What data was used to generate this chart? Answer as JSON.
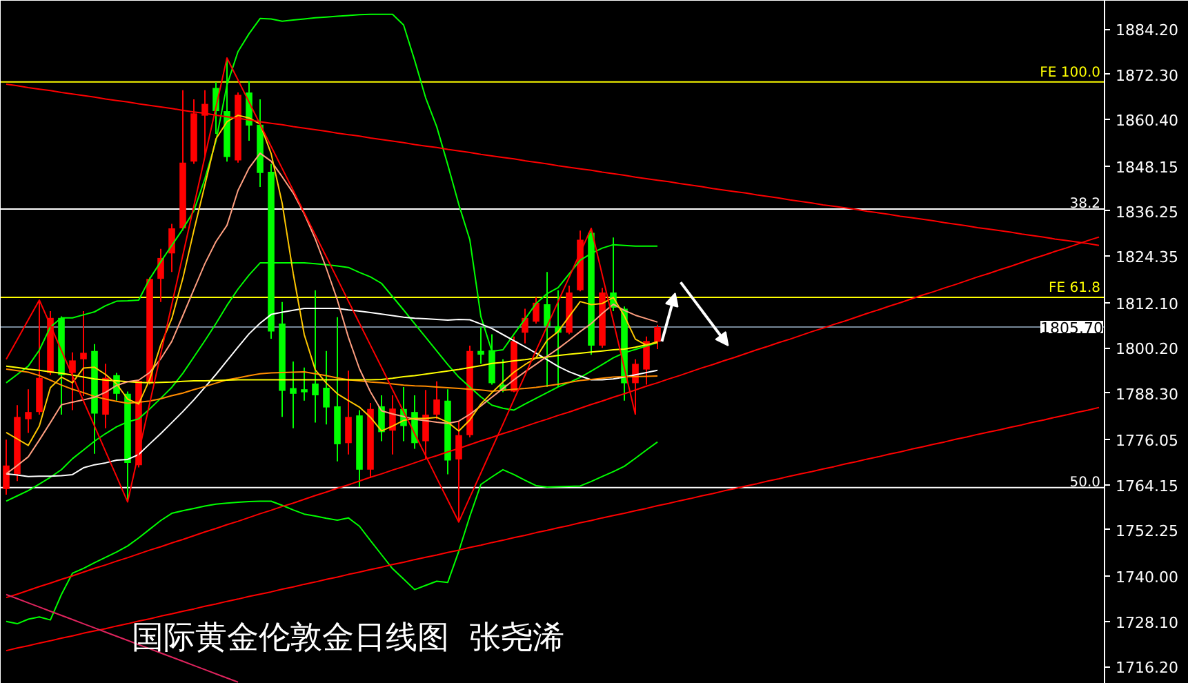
{
  "chart_data": {
    "type": "candlestick",
    "title": "国际黄金伦敦金日线图  张尧浠",
    "categories": [
      null,
      null,
      null,
      null,
      null,
      null,
      null,
      null,
      null,
      null,
      null,
      null,
      null,
      null,
      null,
      null,
      null,
      null,
      null,
      null,
      null,
      null,
      null,
      null,
      null,
      null,
      null,
      null,
      null,
      null,
      null,
      null,
      null,
      null,
      null,
      null,
      null,
      null,
      null,
      null,
      null,
      null,
      null,
      null,
      null,
      null,
      null,
      null,
      null,
      null,
      null,
      null,
      null,
      null,
      null,
      null,
      null,
      null,
      null,
      null,
      null,
      null,
      null,
      null,
      null,
      null,
      null,
      null,
      null,
      null,
      null,
      null,
      null,
      null,
      null,
      null,
      null,
      null,
      null,
      null,
      null,
      null,
      null,
      null,
      null,
      null,
      null,
      null,
      null,
      null,
      null,
      null,
      null,
      null,
      null,
      null,
      null,
      null,
      null,
      null
    ],
    "ohlc": [
      [
        1763.0,
        1776.0,
        1761.5,
        1769.2
      ],
      [
        1766.9,
        1785.1,
        1765.1,
        1782.0
      ],
      [
        1781.4,
        1789.3,
        1777.8,
        1783.3
      ],
      [
        1783.3,
        1812.8,
        1782.6,
        1792.3
      ],
      [
        1793.6,
        1809.9,
        1793.0,
        1808.1
      ],
      [
        1808.1,
        1808.5,
        1782.6,
        1793.0
      ],
      [
        1793.6,
        1799.0,
        1783.8,
        1796.9
      ],
      [
        1797.2,
        1809.9,
        1787.5,
        1798.9
      ],
      [
        1799.4,
        1801.2,
        1772.3,
        1782.9
      ],
      [
        1782.6,
        1796.0,
        1779.0,
        1792.3
      ],
      [
        1793.0,
        1793.6,
        1786.3,
        1788.1
      ],
      [
        1788.1,
        1788.7,
        1759.6,
        1769.9
      ],
      [
        1769.3,
        1791.7,
        1768.7,
        1791.5
      ],
      [
        1791.1,
        1818.8,
        1790.5,
        1818.4
      ],
      [
        1818.4,
        1826.3,
        1812.3,
        1823.9
      ],
      [
        1825.1,
        1832.9,
        1820.2,
        1831.7
      ],
      [
        1831.7,
        1868.1,
        1831.1,
        1849.0
      ],
      [
        1849.3,
        1865.7,
        1848.7,
        1862.0
      ],
      [
        1861.4,
        1868.1,
        1850.5,
        1864.5
      ],
      [
        1868.7,
        1870.2,
        1856.6,
        1862.6
      ],
      [
        1862.6,
        1876.6,
        1849.3,
        1850.5
      ],
      [
        1849.6,
        1867.5,
        1849.0,
        1866.9
      ],
      [
        1867.5,
        1870.5,
        1854.8,
        1858.8
      ],
      [
        1859.0,
        1865.7,
        1842.6,
        1846.3
      ],
      [
        1846.6,
        1848.7,
        1802.6,
        1804.5
      ],
      [
        1806.6,
        1812.3,
        1782.0,
        1788.9
      ],
      [
        1789.6,
        1796.6,
        1779.0,
        1788.1
      ],
      [
        1789.3,
        1795.0,
        1786.3,
        1788.5
      ],
      [
        1790.8,
        1815.4,
        1780.5,
        1787.7
      ],
      [
        1789.7,
        1799.4,
        1780.0,
        1784.5
      ],
      [
        1784.8,
        1808.3,
        1770.3,
        1774.8
      ],
      [
        1775.1,
        1794.2,
        1772.1,
        1782.0
      ],
      [
        1782.4,
        1783.8,
        1763.5,
        1768.1
      ],
      [
        1768.1,
        1785.7,
        1765.9,
        1784.1
      ],
      [
        1784.8,
        1787.7,
        1775.6,
        1778.0
      ],
      [
        1778.4,
        1787.7,
        1772.1,
        1784.2
      ],
      [
        1784.1,
        1789.9,
        1775.6,
        1779.6
      ],
      [
        1783.3,
        1787.7,
        1773.6,
        1775.1
      ],
      [
        1775.6,
        1789.1,
        1770.8,
        1782.6
      ],
      [
        1782.6,
        1791.4,
        1781.4,
        1786.6
      ],
      [
        1786.3,
        1789.3,
        1766.9,
        1770.5
      ],
      [
        1770.8,
        1780.8,
        1754.3,
        1777.2
      ],
      [
        1777.2,
        1800.8,
        1776.6,
        1799.4
      ],
      [
        1799.4,
        1805.7,
        1796.0,
        1798.4
      ],
      [
        1799.6,
        1803.8,
        1790.5,
        1790.9
      ],
      [
        1790.5,
        1797.2,
        1788.5,
        1788.9
      ],
      [
        1788.7,
        1803.2,
        1788.5,
        1802.0
      ],
      [
        1804.2,
        1810.5,
        1801.4,
        1808.1
      ],
      [
        1807.1,
        1813.5,
        1806.6,
        1812.1
      ],
      [
        1811.7,
        1820.2,
        1789.9,
        1805.9
      ],
      [
        1805.9,
        1815.4,
        1789.9,
        1804.2
      ],
      [
        1804.2,
        1816.6,
        1803.8,
        1814.8
      ],
      [
        1815.4,
        1831.1,
        1815.1,
        1828.7
      ],
      [
        1830.5,
        1831.7,
        1798.4,
        1800.8
      ],
      [
        1800.8,
        1816.0,
        1800.2,
        1814.8
      ],
      [
        1814.8,
        1829.3,
        1809.9,
        1810.8
      ],
      [
        1810.5,
        1811.1,
        1786.3,
        1790.9
      ],
      [
        1790.9,
        1797.2,
        1782.6,
        1796.0
      ],
      [
        1794.5,
        1803.2,
        1790.5,
        1802.0
      ],
      [
        1801.8,
        1806.3,
        1799.9,
        1805.7
      ],
      null,
      null,
      null,
      null,
      null,
      null,
      null,
      null,
      null,
      null,
      null,
      null,
      null,
      null,
      null,
      null,
      null,
      null,
      null,
      null,
      null,
      null,
      null,
      null,
      null,
      null,
      null,
      null,
      null,
      null,
      null,
      null,
      null,
      null,
      null,
      null,
      null,
      null,
      null,
      null
    ],
    "colors": [
      "#ff0000",
      "#ff0000",
      "#ff0000",
      "#ff0000",
      "#ff0000",
      "#00ff00",
      "#ff0000",
      "#ff0000",
      "#00ff00",
      "#ff0000",
      "#00ff00",
      "#00ff00",
      "#ff0000",
      "#ff0000",
      "#ff0000",
      "#ff0000",
      "#ff0000",
      "#ff0000",
      "#ff0000",
      "#00ff00",
      "#00ff00",
      "#ff0000",
      "#00ff00",
      "#00ff00",
      "#00ff00",
      "#00ff00",
      "#00ff00",
      "#00ff00",
      "#00ff00",
      "#00ff00",
      "#00ff00",
      "#ff0000",
      "#00ff00",
      "#ff0000",
      "#00ff00",
      "#ff0000",
      "#00ff00",
      "#00ff00",
      "#ff0000",
      "#ff0000",
      "#00ff00",
      "#ff0000",
      "#ff0000",
      "#00ff00",
      "#00ff00",
      "#00ff00",
      "#ff0000",
      "#ff0000",
      "#ff0000",
      "#00ff00",
      "#00ff00",
      "#ff0000",
      "#ff0000",
      "#00ff00",
      "#ff0000",
      "#00ff00",
      "#00ff00",
      "#ff0000",
      "#ff0000",
      "#ff0000",
      null,
      null,
      null,
      null,
      null,
      null,
      null,
      null,
      null,
      null,
      null,
      null,
      null,
      null,
      null,
      null,
      null,
      null,
      null,
      null,
      null,
      null,
      null,
      null,
      null,
      null,
      null,
      null,
      null,
      null,
      null,
      null,
      null,
      null,
      null,
      null,
      null,
      null,
      null,
      null
    ],
    "series": [
      {
        "type": "line",
        "color": "#00ff00",
        "values": [
          1791.0,
          1793.2,
          1795.4,
          1799.6,
          1805.7,
          1808.1,
          1808.1,
          1808.9,
          1809.7,
          1811.3,
          1812.5,
          1812.6,
          1812.8,
          1818.4,
          1822.9,
          1827.2,
          1831.5,
          1836.3,
          1844.8,
          1854.7,
          1869.5,
          1878.3,
          1883.0,
          1887.0,
          1886.9,
          1886.3,
          1886.6,
          1886.9,
          1887.2,
          1887.4,
          1887.6,
          1887.8,
          1888.0,
          1888.1,
          1888.1,
          1888.1,
          1885.3,
          1876.0,
          1866.1,
          1858.5,
          1848.5,
          1838.0,
          1828.7,
          1808.5,
          1799.3,
          1799.7,
          1803.8,
          1807.8,
          1811.9,
          1814.5,
          1816.1,
          1819.7,
          1823.3,
          1825.1,
          1826.5,
          1827.4,
          1827.2,
          1827.0,
          1827.0,
          1827.0,
          null,
          null,
          null,
          null,
          null,
          null,
          null,
          null,
          null,
          null,
          null,
          null,
          null,
          null,
          null,
          null,
          null,
          null,
          null,
          null,
          null,
          null,
          null,
          null,
          null,
          null,
          null,
          null,
          null,
          null,
          null,
          null,
          null,
          null,
          null,
          null,
          null,
          null,
          null,
          null
        ]
      },
      {
        "type": "line",
        "color": "#00ff00",
        "values": [
          1759.8,
          1761.2,
          1762.6,
          1764.3,
          1766.1,
          1768.1,
          1771.0,
          1773.3,
          1775.6,
          1777.6,
          1779.4,
          1780.7,
          1781.5,
          1784.1,
          1786.9,
          1789.8,
          1793.5,
          1797.8,
          1802.1,
          1806.6,
          1811.4,
          1815.7,
          1819.4,
          1822.6,
          1822.6,
          1822.6,
          1822.6,
          1822.6,
          1822.4,
          1822.1,
          1821.8,
          1821.4,
          1820.1,
          1818.9,
          1817.2,
          1813.7,
          1810.2,
          1806.6,
          1803.0,
          1799.4,
          1795.8,
          1792.5,
          1789.9,
          1787.3,
          1785.1,
          1784.3,
          1783.8,
          1785.4,
          1786.9,
          1788.4,
          1789.9,
          1791.1,
          1792.4,
          1794.1,
          1795.8,
          1797.6,
          1798.9,
          1799.8,
          1800.7,
          1801.6,
          null,
          null,
          null,
          null,
          null,
          null,
          null,
          null,
          null,
          null,
          null,
          null,
          null,
          null,
          null,
          null,
          null,
          null,
          null,
          null,
          null,
          null,
          null,
          null,
          null,
          null,
          null,
          null,
          null,
          null,
          null,
          null,
          null,
          null,
          null,
          null,
          null,
          null,
          null,
          null
        ]
      },
      {
        "type": "line",
        "color": "#00ff00",
        "values": [
          1728.1,
          1727.5,
          1728.7,
          1729.3,
          1728.5,
          1735.2,
          1740.8,
          1742.1,
          1743.6,
          1745.0,
          1746.4,
          1748.0,
          1750.1,
          1752.4,
          1754.7,
          1756.6,
          1757.3,
          1757.9,
          1758.5,
          1759.0,
          1759.3,
          1759.5,
          1759.7,
          1759.8,
          1759.8,
          1758.7,
          1757.5,
          1756.4,
          1755.9,
          1755.3,
          1754.8,
          1755.4,
          1753.2,
          1749.4,
          1745.7,
          1742.0,
          1739.3,
          1736.5,
          1737.6,
          1738.7,
          1738.4,
          1746.6,
          1755.8,
          1764.2,
          1766.2,
          1768.1,
          1766.8,
          1765.3,
          1763.9,
          1763.5,
          1763.6,
          1763.7,
          1763.8,
          1765.0,
          1766.3,
          1767.6,
          1769.0,
          1771.1,
          1773.3,
          1775.4,
          null,
          null,
          null,
          null,
          null,
          null,
          null,
          null,
          null,
          null,
          null,
          null,
          null,
          null,
          null,
          null,
          null,
          null,
          null,
          null,
          null,
          null,
          null,
          null,
          null,
          null,
          null,
          null,
          null,
          null,
          null,
          null,
          null,
          null,
          null,
          null,
          null,
          null,
          null,
          null
        ]
      },
      {
        "type": "line",
        "color": "#ffffff",
        "values": [
          1767.0,
          1766.7,
          1766.3,
          1766.4,
          1766.4,
          1766.5,
          1766.8,
          1768.6,
          1769.4,
          1769.9,
          1770.6,
          1770.8,
          1772.1,
          1774.9,
          1777.6,
          1780.5,
          1783.4,
          1786.5,
          1789.8,
          1793.2,
          1796.8,
          1800.4,
          1803.9,
          1806.7,
          1809.0,
          1809.6,
          1810.1,
          1810.6,
          1810.6,
          1810.6,
          1810.6,
          1810.2,
          1809.9,
          1809.5,
          1809.1,
          1808.7,
          1808.3,
          1808.0,
          1807.9,
          1807.7,
          1807.5,
          1807.7,
          1807.6,
          1806.5,
          1805.3,
          1803.7,
          1802.1,
          1800.5,
          1798.8,
          1797.1,
          1795.3,
          1793.9,
          1792.8,
          1791.8,
          1791.8,
          1792.0,
          1792.5,
          1793.1,
          1793.7,
          1794.3,
          null,
          null,
          null,
          null,
          null,
          null,
          null,
          null,
          null,
          null,
          null,
          null,
          null,
          null,
          null,
          null,
          null,
          null,
          null,
          null,
          null,
          null,
          null,
          null,
          null,
          null,
          null,
          null,
          null,
          null,
          null,
          null,
          null,
          null,
          null,
          null,
          null,
          null,
          null,
          null
        ]
      },
      {
        "type": "line",
        "color": "#ff8c00",
        "values": [
          1794.6,
          1794.2,
          1793.8,
          1792.9,
          1791.7,
          1790.4,
          1789.3,
          1788.4,
          1787.4,
          1786.7,
          1786.1,
          1785.6,
          1785.9,
          1786.2,
          1786.8,
          1787.6,
          1788.3,
          1789.2,
          1790.0,
          1790.9,
          1791.8,
          1792.3,
          1792.9,
          1793.4,
          1793.6,
          1793.7,
          1793.8,
          1793.9,
          1793.4,
          1792.9,
          1792.3,
          1791.8,
          1791.5,
          1791.2,
          1791.0,
          1790.7,
          1790.4,
          1790.2,
          1790.1,
          1789.9,
          1789.7,
          1789.5,
          1789.3,
          1789.1,
          1788.8,
          1789.0,
          1789.3,
          1789.5,
          1789.8,
          1790.2,
          1790.6,
          1791.1,
          1791.6,
          1791.9,
          1792.2,
          1792.5,
          1792.6,
          1792.6,
          1792.7,
          1792.8,
          null,
          null,
          null,
          null,
          null,
          null,
          null,
          null,
          null,
          null,
          null,
          null,
          null,
          null,
          null,
          null,
          null,
          null,
          null,
          null,
          null,
          null,
          null,
          null,
          null,
          null,
          null,
          null,
          null,
          null,
          null,
          null,
          null,
          null,
          null,
          null,
          null,
          null,
          null,
          null
        ]
      },
      {
        "type": "line",
        "color": "#ffff00",
        "values": [
          1795.4,
          1795.0,
          1794.6,
          1794.3,
          1793.9,
          1793.5,
          1793.0,
          1792.5,
          1792.0,
          1791.7,
          1791.5,
          1791.3,
          1791.1,
          1791.0,
          1791.1,
          1791.2,
          1791.4,
          1791.5,
          1791.5,
          1791.6,
          1791.7,
          1791.8,
          1791.8,
          1791.8,
          1791.8,
          1791.8,
          1791.8,
          1791.8,
          1791.8,
          1791.8,
          1791.8,
          1791.8,
          1791.8,
          1791.8,
          1791.9,
          1792.2,
          1792.6,
          1792.9,
          1793.3,
          1793.7,
          1794.1,
          1794.5,
          1795.0,
          1795.5,
          1796.1,
          1796.4,
          1796.8,
          1797.1,
          1797.5,
          1797.8,
          1798.2,
          1798.5,
          1798.8,
          1799.1,
          1799.4,
          1799.7,
          1799.9,
          1800.4,
          1801.0,
          1801.6,
          null,
          null,
          null,
          null,
          null,
          null,
          null,
          null,
          null,
          null,
          null,
          null,
          null,
          null,
          null,
          null,
          null,
          null,
          null,
          null,
          null,
          null,
          null,
          null,
          null,
          null,
          null,
          null,
          null,
          null,
          null,
          null,
          null,
          null,
          null,
          null,
          null,
          null,
          null,
          null
        ]
      },
      {
        "type": "line",
        "color": "#ff9f80",
        "values": [
          1767.0,
          1769.2,
          1771.5,
          1775.9,
          1780.5,
          1785.2,
          1785.9,
          1786.5,
          1787.2,
          1788.5,
          1790.3,
          1791.3,
          1791.7,
          1793.7,
          1797.3,
          1801.9,
          1808.7,
          1815.6,
          1822.4,
          1828.2,
          1832.5,
          1841.7,
          1847.6,
          1851.5,
          1849.4,
          1845.3,
          1841.0,
          1835.5,
          1828.9,
          1821.2,
          1812.8,
          1803.0,
          1794.7,
          1788.6,
          1783.6,
          1782.8,
          1782.1,
          1781.4,
          1781.0,
          1780.6,
          1780.3,
          1780.9,
          1782.7,
          1784.9,
          1787.2,
          1789.5,
          1791.8,
          1793.9,
          1795.9,
          1798.0,
          1800.0,
          1802.2,
          1804.5,
          1806.6,
          1809.3,
          1811.7,
          1810.1,
          1808.8,
          1807.9,
          1807.0,
          null,
          null,
          null,
          null,
          null,
          null,
          null,
          null,
          null,
          null,
          null,
          null,
          null,
          null,
          null,
          null,
          null,
          null,
          null,
          null,
          null,
          null,
          null,
          null,
          null,
          null,
          null,
          null,
          null,
          null,
          null,
          null,
          null,
          null,
          null,
          null,
          null,
          null,
          null,
          null
        ]
      },
      {
        "type": "line",
        "color": "#ffc800",
        "values": [
          1777.9,
          1776.2,
          1774.5,
          1779.6,
          1789.7,
          1792.5,
          1791.0,
          1794.9,
          1795.1,
          1793.2,
          1790.7,
          1786.7,
          1785.4,
          1791.9,
          1801.0,
          1807.9,
          1818.5,
          1831.1,
          1843.1,
          1855.3,
          1859.8,
          1861.5,
          1860.8,
          1859.2,
          1851.4,
          1838.3,
          1819.8,
          1803.7,
          1794.4,
          1790.9,
          1788.1,
          1786.3,
          1784.6,
          1781.9,
          1778.3,
          1779.6,
          1781.1,
          1781.6,
          1781.6,
          1781.9,
          1780.6,
          1778.3,
          1781.2,
          1785.4,
          1788.4,
          1791.2,
          1793.8,
          1795.8,
          1797.6,
          1802.2,
          1804.5,
          1808.5,
          1812.4,
          1811.6,
          1811.9,
          1813.5,
          1808.6,
          1802.5,
          1800.9,
          1801.9,
          null,
          null,
          null,
          null,
          null,
          null,
          null,
          null,
          null,
          null,
          null,
          null,
          null,
          null,
          null,
          null,
          null,
          null,
          null,
          null,
          null,
          null,
          null,
          null,
          null,
          null,
          null,
          null,
          null,
          null,
          null,
          null,
          null,
          null,
          null,
          null,
          null,
          null,
          null,
          null
        ]
      },
      {
        "type": "line",
        "color": "#ff0000",
        "values": [
          1797.2,
          1802.4,
          1807.6,
          1812.8,
          1806.2,
          1799.5,
          1792.9,
          1786.2,
          1779.6,
          1772.9,
          1766.3,
          1759.6,
          1772.6,
          1785.6,
          1798.6,
          1811.6,
          1824.6,
          1837.6,
          1850.6,
          1863.6,
          1876.6,
          1870.8,
          1865.0,
          1859.1,
          1853.3,
          1847.5,
          1841.7,
          1835.8,
          1830.0,
          1824.2,
          1818.4,
          1812.5,
          1806.7,
          1800.9,
          1795.1,
          1789.2,
          1783.4,
          1777.6,
          1771.8,
          1765.9,
          1760.1,
          1754.3,
          1760.8,
          1767.2,
          1773.7,
          1780.1,
          1786.6,
          1793.0,
          1799.5,
          1805.9,
          1812.4,
          1818.8,
          1825.3,
          1831.7,
          1819.4,
          1807.2,
          1794.9,
          1782.6,
          null,
          null,
          null,
          null,
          null,
          null,
          null,
          null,
          null,
          null,
          null,
          null,
          null,
          null,
          null,
          null,
          null,
          null,
          null,
          null,
          null,
          null,
          null,
          null,
          null,
          null,
          null,
          null,
          null,
          null,
          null,
          null,
          null,
          null,
          null,
          null,
          null,
          null,
          null,
          null,
          null,
          null
        ]
      },
      {
        "type": "line",
        "color": "#ff0000",
        "values": [
          1869.7,
          1869.3,
          1868.8,
          1868.4,
          1868.0,
          1867.5,
          1867.1,
          1866.7,
          1866.3,
          1865.8,
          1865.4,
          1865.0,
          1864.5,
          1864.1,
          1863.7,
          1863.3,
          1862.8,
          1862.4,
          1862.0,
          1861.5,
          1861.1,
          1860.7,
          1860.3,
          1859.8,
          1859.4,
          1859.0,
          1858.5,
          1858.1,
          1857.7,
          1857.3,
          1856.8,
          1856.4,
          1856.0,
          1855.5,
          1855.1,
          1854.7,
          1854.3,
          1853.8,
          1853.4,
          1853.0,
          1852.5,
          1852.1,
          1851.7,
          1851.2,
          1850.8,
          1850.4,
          1850.0,
          1849.5,
          1849.1,
          1848.7,
          1848.2,
          1847.8,
          1847.4,
          1847.0,
          1846.5,
          1846.1,
          1845.7,
          1845.2,
          1844.8,
          1844.4,
          1844.0,
          1843.5,
          1843.1,
          1842.7,
          1842.2,
          1841.8,
          1841.4,
          1841.0,
          1840.5,
          1840.1,
          1839.7,
          1839.2,
          1838.8,
          1838.4,
          1837.9,
          1837.5,
          1837.1,
          1836.7,
          1836.2,
          1835.8,
          1835.4,
          1834.9,
          1834.5,
          1834.1,
          1833.7,
          1833.2,
          1832.8,
          1832.4,
          1831.9,
          1831.5,
          1831.1,
          1830.7,
          1830.2,
          1829.8,
          1829.4,
          1828.9,
          1828.5,
          1828.1,
          1827.7,
          1827.2
        ]
      },
      {
        "type": "line",
        "color": "#ff0000",
        "values": [
          1734.4,
          1735.3,
          1736.3,
          1737.3,
          1738.2,
          1739.2,
          1740.1,
          1741.1,
          1742.1,
          1743.0,
          1744.0,
          1744.9,
          1745.9,
          1746.9,
          1747.8,
          1748.8,
          1749.7,
          1750.7,
          1751.7,
          1752.6,
          1753.6,
          1754.5,
          1755.5,
          1756.5,
          1757.4,
          1758.4,
          1759.3,
          1760.3,
          1761.3,
          1762.2,
          1763.2,
          1764.1,
          1765.1,
          1766.1,
          1767.0,
          1768.0,
          1768.9,
          1769.9,
          1770.9,
          1771.8,
          1772.8,
          1773.7,
          1774.7,
          1775.7,
          1776.6,
          1777.6,
          1778.5,
          1779.5,
          1780.5,
          1781.4,
          1782.4,
          1783.3,
          1784.3,
          1785.3,
          1786.2,
          1787.2,
          1788.1,
          1789.1,
          1790.1,
          1791.0,
          1792.0,
          1792.9,
          1793.9,
          1794.9,
          1795.8,
          1796.8,
          1797.7,
          1798.7,
          1799.7,
          1800.6,
          1801.6,
          1802.5,
          1803.5,
          1804.5,
          1805.4,
          1806.4,
          1807.3,
          1808.3,
          1809.3,
          1810.2,
          1811.2,
          1812.1,
          1813.1,
          1814.1,
          1815.0,
          1816.0,
          1816.9,
          1817.9,
          1818.9,
          1819.8,
          1820.8,
          1821.7,
          1822.7,
          1823.7,
          1824.6,
          1825.6,
          1826.5,
          1827.5,
          1828.5,
          1829.4
        ]
      },
      {
        "type": "line",
        "color": "#ff0000",
        "values": [
          1720.4,
          1721.1,
          1721.7,
          1722.4,
          1723.0,
          1723.7,
          1724.3,
          1725.0,
          1725.6,
          1726.2,
          1726.9,
          1727.5,
          1728.2,
          1728.8,
          1729.5,
          1730.1,
          1730.8,
          1731.4,
          1732.1,
          1732.7,
          1733.4,
          1734.0,
          1734.7,
          1735.3,
          1735.9,
          1736.6,
          1737.2,
          1737.9,
          1738.5,
          1739.2,
          1739.8,
          1740.5,
          1741.1,
          1741.8,
          1742.4,
          1743.1,
          1743.7,
          1744.4,
          1745.0,
          1745.6,
          1746.3,
          1746.9,
          1747.6,
          1748.2,
          1748.9,
          1749.5,
          1750.2,
          1750.8,
          1751.5,
          1752.1,
          1752.8,
          1753.4,
          1754.1,
          1754.7,
          1755.4,
          1756.0,
          1756.6,
          1757.3,
          1757.9,
          1758.6,
          1759.2,
          1759.9,
          1760.5,
          1761.2,
          1761.8,
          1762.5,
          1763.1,
          1763.8,
          1764.4,
          1765.1,
          1765.7,
          1766.4,
          1767.0,
          1767.6,
          1768.3,
          1768.9,
          1769.6,
          1770.2,
          1770.9,
          1771.5,
          1772.2,
          1772.8,
          1773.5,
          1774.1,
          1774.8,
          1775.4,
          1776.1,
          1776.7,
          1777.4,
          1778.0,
          1778.6,
          1779.3,
          1779.9,
          1780.6,
          1781.2,
          1781.9,
          1782.5,
          1783.2,
          1783.8,
          1784.5
        ]
      },
      {
        "type": "line",
        "color": "#e0245e",
        "values": [
          1735.2,
          1734.1,
          1733.0,
          1731.9,
          1730.8,
          1729.7,
          1728.6,
          1727.5,
          1726.4,
          1725.3,
          1724.2,
          1723.1,
          1722.0,
          1720.9,
          1719.8,
          1718.7,
          1717.6,
          1716.5,
          1715.4,
          1714.3,
          1713.2,
          1712.1,
          null,
          null,
          null,
          null,
          null,
          null,
          null,
          null,
          null,
          null,
          null,
          null,
          null,
          null,
          null,
          null,
          null,
          null,
          null,
          null,
          null,
          null,
          null,
          null,
          null,
          null,
          null,
          null,
          null,
          null,
          null,
          null,
          null,
          null,
          null,
          null,
          null,
          null,
          null,
          null,
          null,
          null,
          null,
          null,
          null,
          null,
          null,
          null,
          null,
          null,
          null,
          null,
          null,
          null,
          null,
          null,
          null,
          null,
          null,
          null,
          null,
          null,
          null,
          null,
          null,
          null,
          null,
          null,
          null,
          null,
          null,
          null,
          null,
          null,
          null,
          null,
          null,
          null
        ]
      }
    ],
    "ref_lines": [
      {
        "axis": "y",
        "value": 1870.3,
        "color": "#ffff00"
      },
      {
        "axis": "y",
        "value": 1836.8,
        "color": "#ffffff"
      },
      {
        "axis": "y",
        "value": 1813.5,
        "color": "#ffff00"
      },
      {
        "axis": "y",
        "value": 1805.7,
        "label": "1805.70",
        "color": "#778899"
      },
      {
        "axis": "y",
        "value": 1763.4,
        "color": "#ffffff"
      }
    ],
    "annotations": [
      {
        "text": "FE 100.0",
        "y": 1870.3
      },
      {
        "text": "38.2",
        "y": 1836.8
      },
      {
        "text": "FE 61.8",
        "y": 1813.5
      },
      {
        "text": "50.0",
        "y": 1763.4
      }
    ],
    "ylim": [
      1711.7,
      1891.7
    ],
    "yticks": [
      {
        "value": 1884.2,
        "label": "1884.20"
      },
      {
        "value": 1872.3,
        "label": "1872.30"
      },
      {
        "value": 1860.4,
        "label": "1860.40"
      },
      {
        "value": 1848.15,
        "label": "1848.15"
      },
      {
        "value": 1836.25,
        "label": "1836.25"
      },
      {
        "value": 1824.35,
        "label": "1824.35"
      },
      {
        "value": 1812.1,
        "label": "1812.10"
      },
      {
        "value": 1800.2,
        "label": "1800.20"
      },
      {
        "value": 1788.3,
        "label": "1788.30"
      },
      {
        "value": 1776.05,
        "label": "1776.05"
      },
      {
        "value": 1764.15,
        "label": "1764.15"
      },
      {
        "value": 1752.25,
        "label": "1752.25"
      },
      {
        "value": 1740.0,
        "label": "1740.00"
      },
      {
        "value": 1728.1,
        "label": "1728.10"
      },
      {
        "value": 1716.2,
        "label": "1716.20"
      }
    ],
    "tick_labels": "y"
  }
}
